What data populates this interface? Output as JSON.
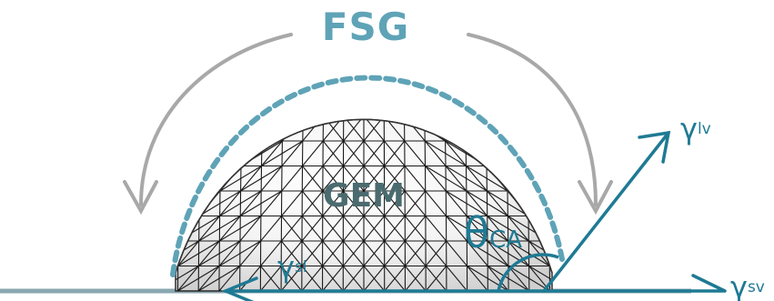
{
  "labels": {
    "fsg": "FSG",
    "gem": "GEM",
    "theta": "θ",
    "theta_sub": "CA",
    "gamma_lv": "γ",
    "gamma_lv_sub": "lv",
    "gamma_sl": "γ",
    "gamma_sl_sub": "sl",
    "gamma_sv": "γ",
    "gamma_sv_sub": "sv"
  },
  "colors": {
    "accent_fsg": "#5fa3b7",
    "vector_teal": "#1f7a94",
    "arrow_gray": "#a8a8a8",
    "gem_text": "#4a6b6f",
    "mesh_line": "#1a1a1a",
    "surface": "#8aa7b0"
  }
}
